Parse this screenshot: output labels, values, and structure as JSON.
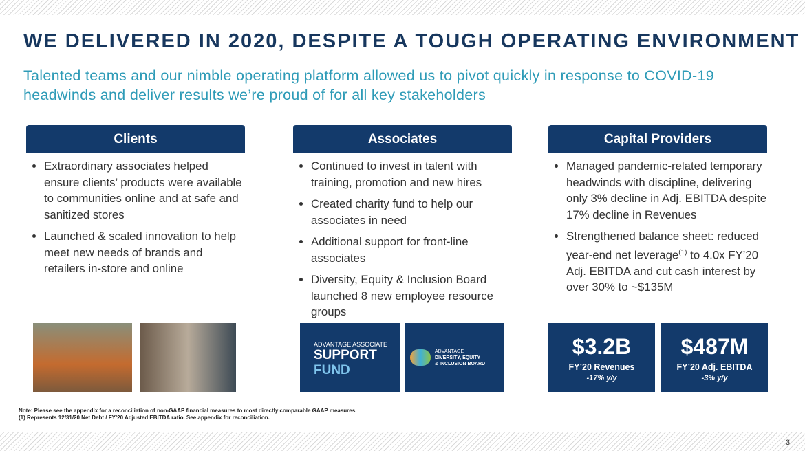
{
  "header": {
    "title": "WE DELIVERED IN 2020, DESPITE A TOUGH OPERATING ENVIRONMENT",
    "subtitle": "Talented teams and our nimble operating platform allowed us to pivot quickly in response to COVID-19 headwinds and deliver results we’re proud of for all key stakeholders"
  },
  "columns": [
    {
      "heading": "Clients",
      "bullets": [
        "Extraordinary associates helped ensure clients’ products were available to communities online and at safe and sanitized stores",
        "Launched & scaled innovation to help meet new needs of brands and retailers in-store and online"
      ]
    },
    {
      "heading": "Associates",
      "bullets": [
        "Continued to invest in talent with training, promotion and new hires",
        "Created charity fund to help our associates in need",
        "Additional support for front-line associates",
        "Diversity, Equity & Inclusion Board launched 8 new employee resource groups"
      ],
      "logos": [
        {
          "line1": "ADVANTAGE ASSOCIATE",
          "line2": "SUPPORT",
          "line3": "FUND"
        },
        {
          "line1": "ADVANTAGE",
          "line2": "DIVERSITY, EQUITY",
          "line3": "& INCLUSION BOARD"
        }
      ]
    },
    {
      "heading": "Capital Providers",
      "bullets": [
        {
          "text": "Managed pandemic-related temporary headwinds with discipline, delivering only 3% decline in Adj. EBITDA despite 17% decline in Revenues"
        },
        {
          "text": "Strengthened balance sheet: reduced year-end net leverage",
          "sup": "(1)",
          "text_after": " to 4.0x FY’20 Adj. EBITDA and cut cash interest by over 30% to ~$135M"
        }
      ],
      "metrics": [
        {
          "value": "$3.2B",
          "label": "FY’20 Revenues",
          "change": "-17% y/y"
        },
        {
          "value": "$487M",
          "label": "FY’20 Adj. EBITDA",
          "change": "-3% y/y"
        }
      ]
    }
  ],
  "footnotes": [
    "Note: Please see the appendix for a reconciliation of non-GAAP financial measures to most directly comparable GAAP measures.",
    "(1)  Represents 12/31/20 Net Debt / FY’20 Adjusted EBITDA ratio. See appendix for reconciliation."
  ],
  "page_number": "3"
}
